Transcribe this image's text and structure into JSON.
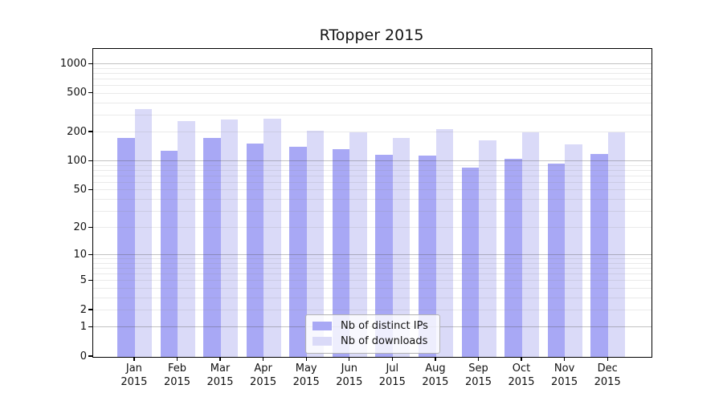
{
  "chart_data": {
    "type": "bar",
    "title": "RTopper 2015",
    "y_scale": "log1p",
    "categories": [
      "Jan 2015",
      "Feb 2015",
      "Mar 2015",
      "Apr 2015",
      "May 2015",
      "Jun 2015",
      "Jul 2015",
      "Aug 2015",
      "Sep 2015",
      "Oct 2015",
      "Nov 2015",
      "Dec 2015"
    ],
    "series": [
      {
        "name": "Nb of distinct IPs",
        "color": "#a8a8f5",
        "values": [
          175,
          130,
          175,
          152,
          143,
          135,
          118,
          116,
          87,
          107,
          95,
          120
        ]
      },
      {
        "name": "Nb of downloads",
        "color": "#dadaf8",
        "values": [
          345,
          260,
          272,
          275,
          208,
          200,
          175,
          214,
          166,
          202,
          150,
          202
        ]
      }
    ],
    "xlabel": "",
    "ylabel": "",
    "y_ticks": [
      1000,
      500,
      200,
      100,
      50,
      20,
      10,
      5,
      2,
      1,
      0
    ],
    "ylim": [
      0,
      1430
    ],
    "grid": {
      "orientation": "horizontal",
      "major_at": [
        1,
        10,
        100,
        1000
      ],
      "minor": "2-9 per decade"
    },
    "legend_position": "lower center",
    "colors": {
      "ips_bar": "#a8a8f5",
      "downloads_bar": "#dadaf8",
      "grid_major": "rgba(80,80,80,0.35)",
      "grid_minor": "rgba(140,140,140,0.18)",
      "frame": "#000000"
    }
  }
}
